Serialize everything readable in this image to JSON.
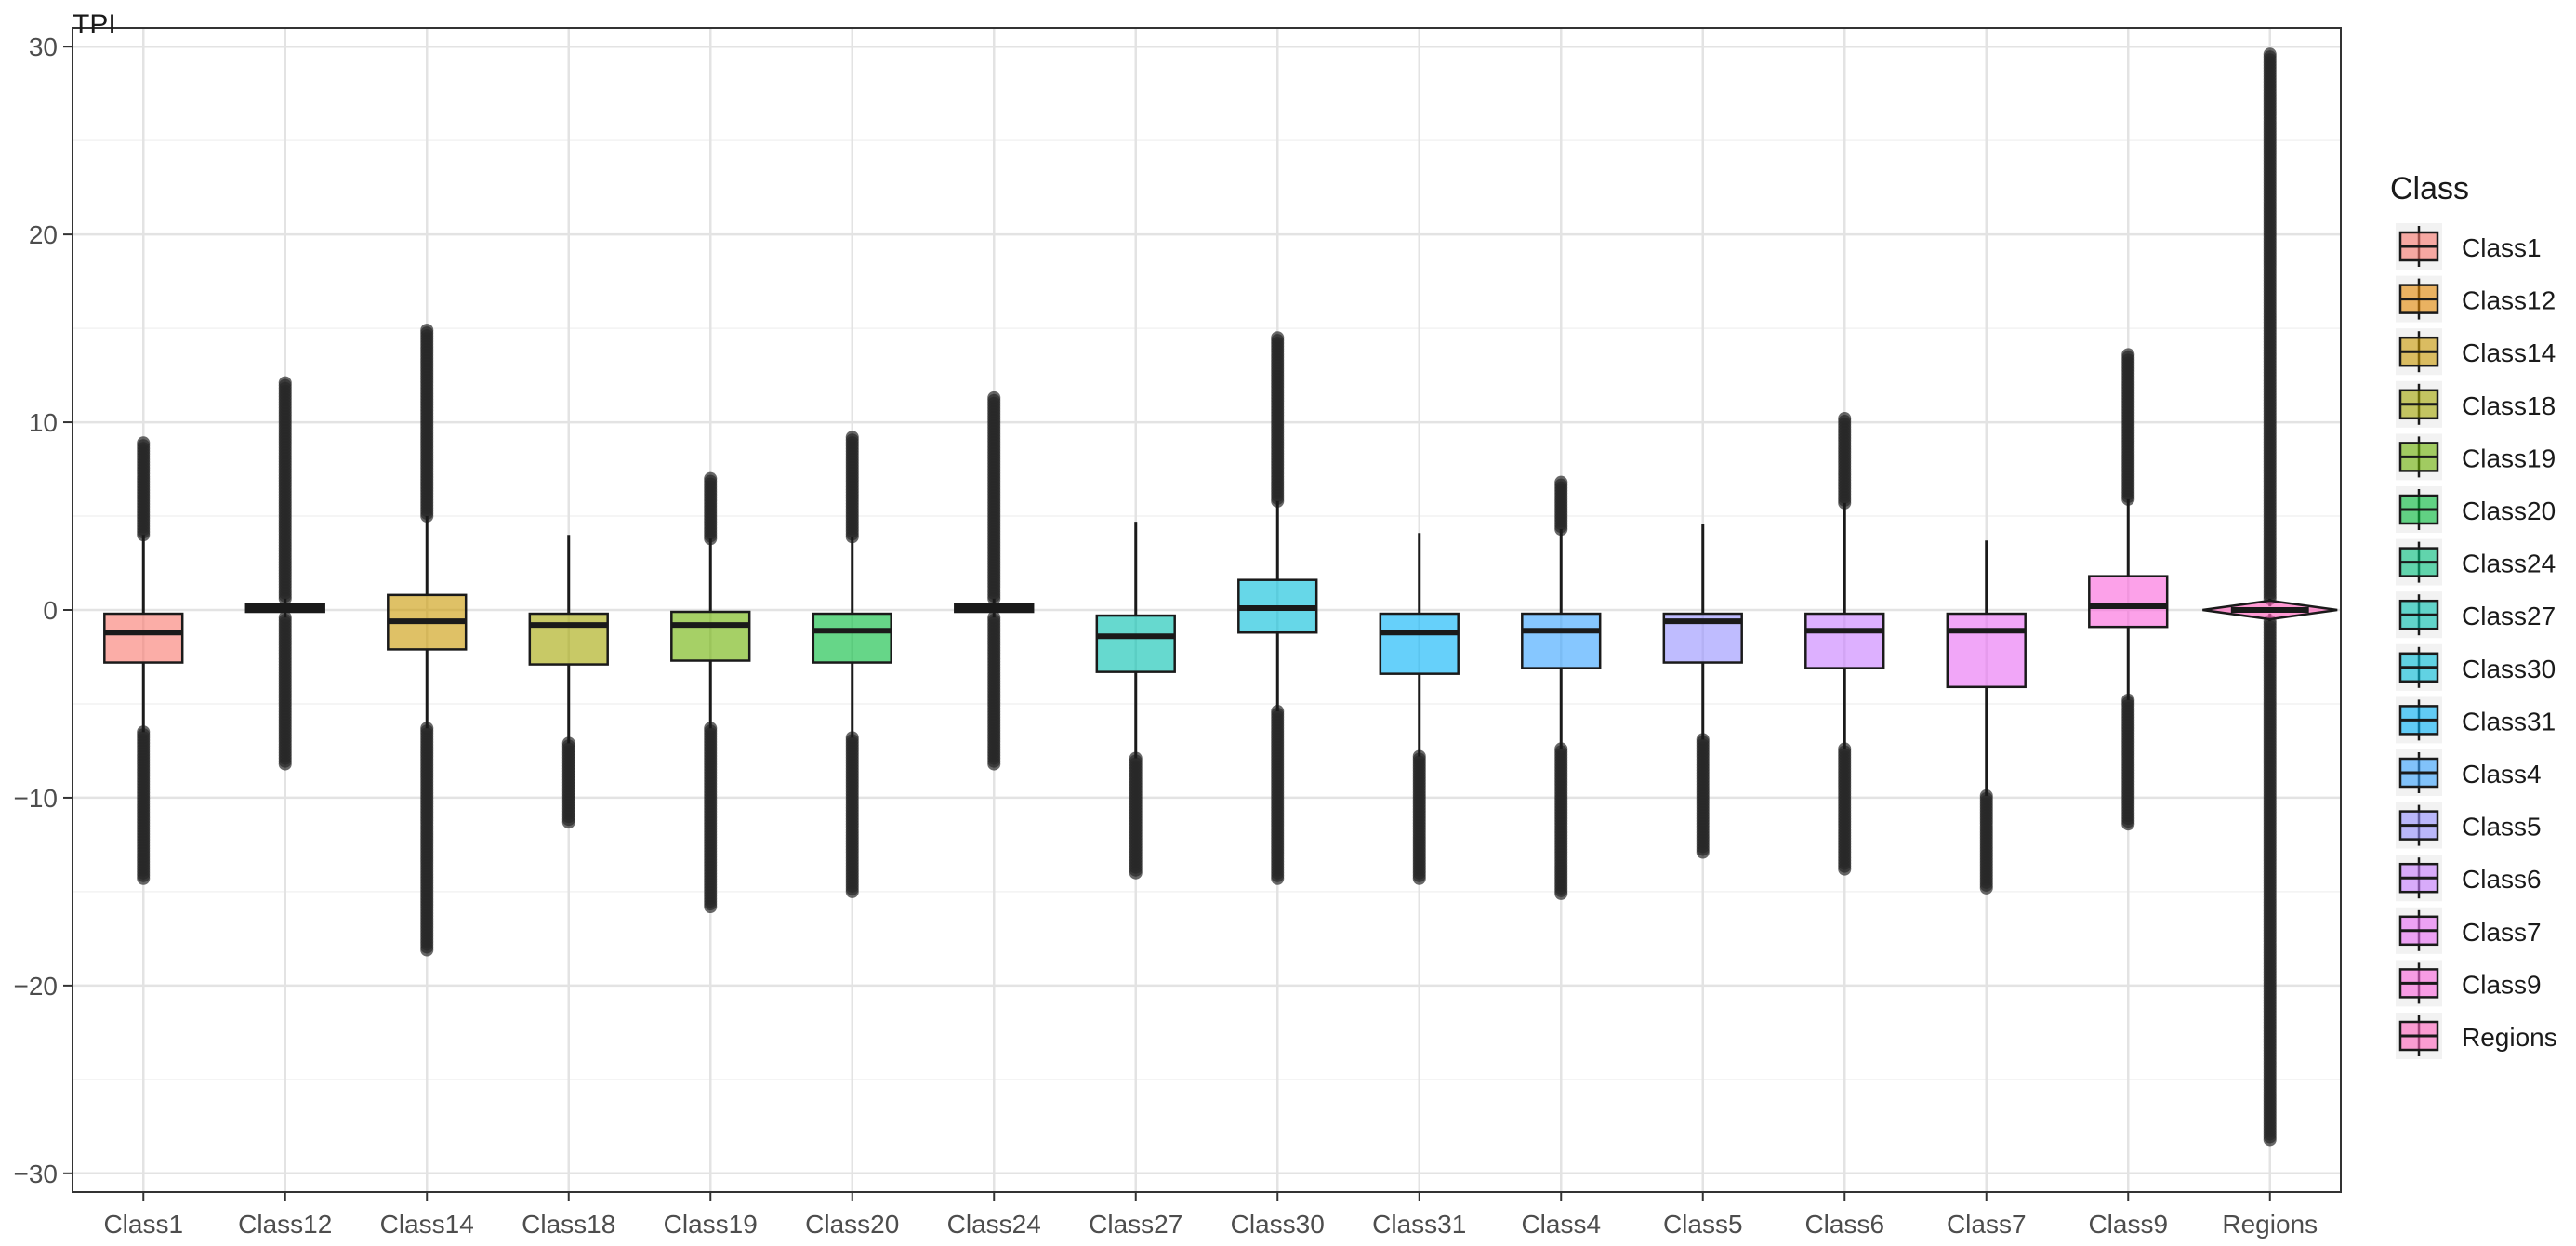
{
  "chart_data": {
    "type": "box",
    "ylabel": "TPI",
    "xlabel": "",
    "ylim": [
      -31,
      31
    ],
    "yticks": [
      -30,
      -20,
      -10,
      0,
      10,
      20,
      30
    ],
    "grid": true,
    "legend_title": "Class",
    "legend_position": "right",
    "categories": [
      "Class1",
      "Class12",
      "Class14",
      "Class18",
      "Class19",
      "Class20",
      "Class24",
      "Class27",
      "Class30",
      "Class31",
      "Class4",
      "Class5",
      "Class6",
      "Class7",
      "Class9",
      "Regions"
    ],
    "series": [
      {
        "name": "Class1",
        "color": "#F8766D",
        "q1": -2.8,
        "median": -1.2,
        "q3": -0.2,
        "lower": -6.5,
        "upper": 4.0,
        "min": -14.3,
        "max": 8.9
      },
      {
        "name": "Class12",
        "color": "#E58700",
        "q1": -0.1,
        "median": 0.1,
        "q3": 0.3,
        "lower": -0.4,
        "upper": 0.6,
        "min": -8.2,
        "max": 12.1
      },
      {
        "name": "Class14",
        "color": "#C99800",
        "q1": -2.1,
        "median": -0.6,
        "q3": 0.8,
        "lower": -6.3,
        "upper": 5.0,
        "min": -18.1,
        "max": 14.9
      },
      {
        "name": "Class18",
        "color": "#A3A500",
        "q1": -2.9,
        "median": -0.8,
        "q3": -0.2,
        "lower": -7.1,
        "upper": 4.0,
        "min": -11.3,
        "max": 4.0
      },
      {
        "name": "Class19",
        "color": "#6BB100",
        "q1": -2.7,
        "median": -0.8,
        "q3": -0.1,
        "lower": -6.3,
        "upper": 3.8,
        "min": -15.8,
        "max": 7.0
      },
      {
        "name": "Class20",
        "color": "#00BA38",
        "q1": -2.8,
        "median": -1.1,
        "q3": -0.2,
        "lower": -6.8,
        "upper": 3.9,
        "min": -15.0,
        "max": 9.2
      },
      {
        "name": "Class24",
        "color": "#00BF7D",
        "q1": -0.1,
        "median": 0.1,
        "q3": 0.3,
        "lower": -0.4,
        "upper": 0.6,
        "min": -8.2,
        "max": 11.3
      },
      {
        "name": "Class27",
        "color": "#00C0AF",
        "q1": -3.3,
        "median": -1.4,
        "q3": -0.3,
        "lower": -7.9,
        "upper": 4.7,
        "min": -14.0,
        "max": 4.7
      },
      {
        "name": "Class30",
        "color": "#00BCD8",
        "q1": -1.2,
        "median": 0.1,
        "q3": 1.6,
        "lower": -5.4,
        "upper": 5.8,
        "min": -14.3,
        "max": 14.5
      },
      {
        "name": "Class31",
        "color": "#00B0F6",
        "q1": -3.4,
        "median": -1.2,
        "q3": -0.2,
        "lower": -7.8,
        "upper": 4.1,
        "min": -14.3,
        "max": 4.1
      },
      {
        "name": "Class4",
        "color": "#35A2FF",
        "q1": -3.1,
        "median": -1.1,
        "q3": -0.2,
        "lower": -7.4,
        "upper": 4.3,
        "min": -15.1,
        "max": 6.8
      },
      {
        "name": "Class5",
        "color": "#9590FF",
        "q1": -2.8,
        "median": -0.6,
        "q3": -0.2,
        "lower": -6.9,
        "upper": 4.6,
        "min": -12.9,
        "max": 4.6
      },
      {
        "name": "Class6",
        "color": "#C77CFF",
        "q1": -3.1,
        "median": -1.1,
        "q3": -0.2,
        "lower": -7.4,
        "upper": 5.7,
        "min": -13.8,
        "max": 10.2
      },
      {
        "name": "Class7",
        "color": "#E76BF3",
        "q1": -4.1,
        "median": -1.1,
        "q3": -0.2,
        "lower": -9.9,
        "upper": 3.7,
        "min": -14.8,
        "max": 3.7
      },
      {
        "name": "Class9",
        "color": "#FA62DB",
        "q1": -0.9,
        "median": 0.2,
        "q3": 1.8,
        "lower": -4.8,
        "upper": 5.9,
        "min": -11.4,
        "max": 13.6
      },
      {
        "name": "Regions",
        "color": "#FF62BC",
        "q1": -0.2,
        "median": 0.0,
        "q3": 0.2,
        "lower": -0.6,
        "upper": 0.6,
        "min": -28.2,
        "max": 29.6
      }
    ]
  }
}
